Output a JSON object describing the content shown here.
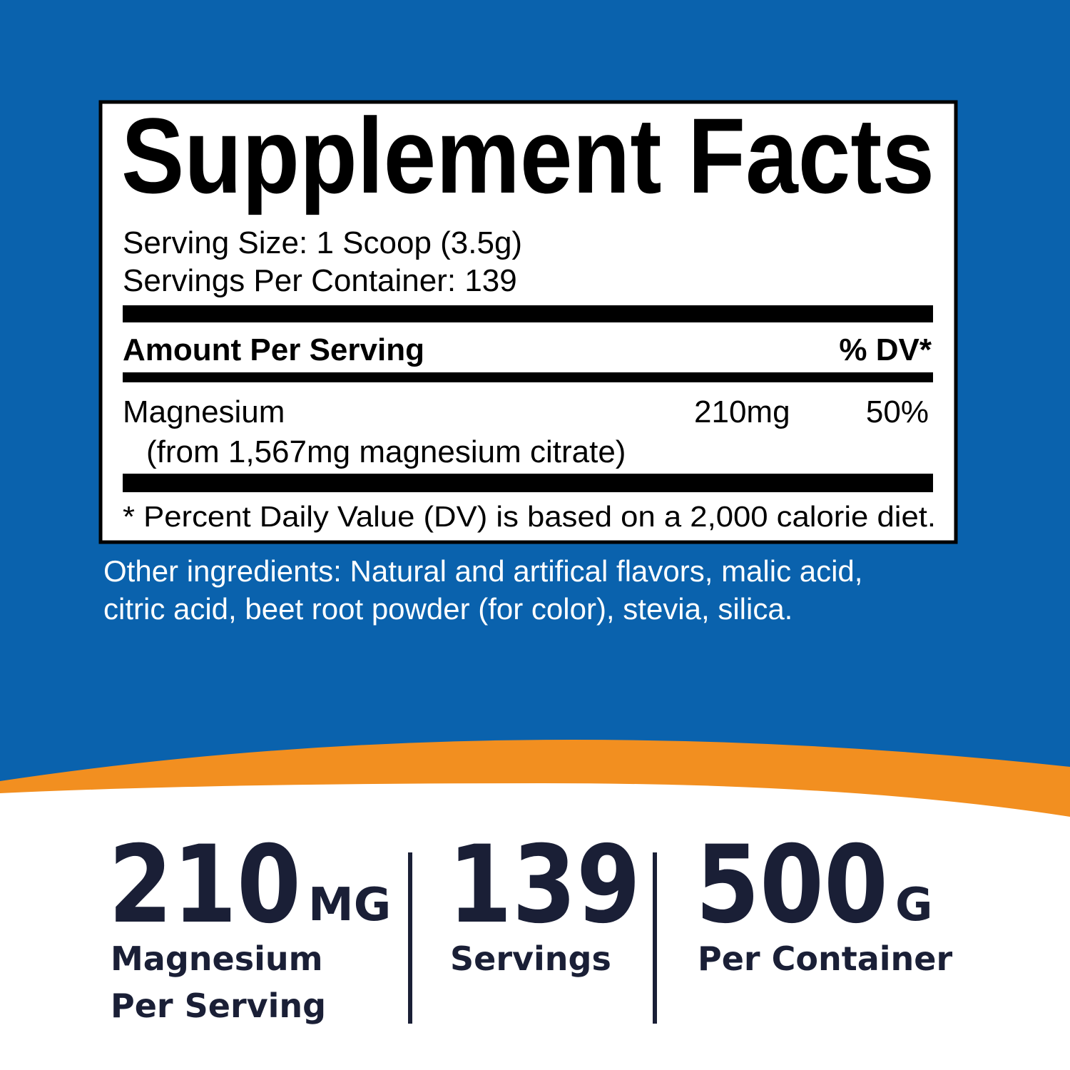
{
  "label": {
    "title": "Supplement Facts",
    "serving_size": "Serving Size: 1 Scoop (3.5g)",
    "servings_per_container": "Servings Per Container: 139",
    "header": {
      "amount": "Amount Per Serving",
      "dv": "% DV*"
    },
    "rows": [
      {
        "name": "Magnesium",
        "source": "(from 1,567mg magnesium citrate)",
        "amount": "210mg",
        "dv": "50%"
      }
    ],
    "footnote": "* Percent Daily Value (DV) is based on a 2,000 calorie diet."
  },
  "other_ingredients": [
    "Other ingredients: Natural and artifical flavors, malic acid,",
    "citric acid, beet root powder (for color), stevia, silica."
  ],
  "stats": [
    {
      "value": "210",
      "unit": "MG",
      "caption": [
        "Magnesium",
        "Per Serving"
      ]
    },
    {
      "value": "139",
      "caption": [
        "Servings"
      ]
    },
    {
      "value": "500",
      "unit": "G",
      "caption": [
        "Per Container"
      ]
    }
  ]
}
